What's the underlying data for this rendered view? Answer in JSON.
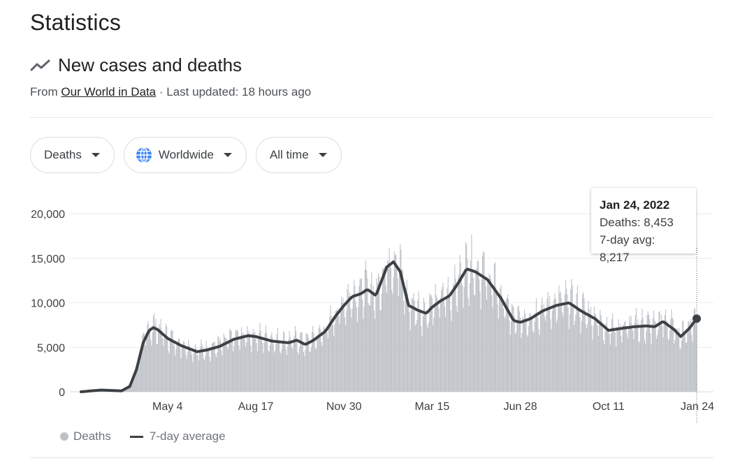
{
  "page": {
    "title": "Statistics",
    "section_title": "New cases and deaths",
    "source_prefix": "From",
    "source_link": "Our World in Data",
    "source_suffix": "· Last updated: 18 hours ago"
  },
  "filters": [
    {
      "label": "Deaths",
      "icon": "caret-down-icon"
    },
    {
      "label": "Worldwide",
      "icon": "globe-icon"
    },
    {
      "label": "All time",
      "icon": "caret-down-icon"
    }
  ],
  "tooltip": {
    "date": "Jan 24, 2022",
    "deaths": "Deaths: 8,453",
    "avg": "7-day avg: 8,217"
  },
  "legend": {
    "deaths": "Deaths",
    "avg": "7-day average"
  },
  "colors": {
    "bars": "#bdc1c6",
    "line": "#3c4043",
    "grid": "#ebebeb",
    "globe": "#4285f4"
  },
  "chart_data": {
    "type": "bar",
    "x_ticks": [
      "May 4",
      "Aug 17",
      "Nov 30",
      "Mar 15",
      "Jun 28",
      "Oct 11",
      "Jan 24"
    ],
    "y_ticks": [
      "20,000",
      "15,000",
      "10,000",
      "5,000",
      "0"
    ],
    "ylim": [
      0,
      20000
    ],
    "x_start": "2020-01-22",
    "x_end": "2022-01-24",
    "grid": true,
    "legend_position": "bottom-left",
    "series": [
      {
        "name": "7-day average",
        "type": "line",
        "x": [
          "2020-01-22",
          "2020-02-15",
          "2020-03-10",
          "2020-03-20",
          "2020-03-28",
          "2020-04-05",
          "2020-04-12",
          "2020-04-17",
          "2020-04-22",
          "2020-05-04",
          "2020-05-20",
          "2020-06-08",
          "2020-06-20",
          "2020-07-05",
          "2020-07-22",
          "2020-08-08",
          "2020-08-17",
          "2020-09-05",
          "2020-09-25",
          "2020-10-05",
          "2020-10-15",
          "2020-10-25",
          "2020-11-08",
          "2020-11-20",
          "2020-11-30",
          "2020-12-10",
          "2020-12-20",
          "2020-12-28",
          "2021-01-07",
          "2021-01-20",
          "2021-01-28",
          "2021-02-05",
          "2021-02-15",
          "2021-02-25",
          "2021-03-08",
          "2021-03-15",
          "2021-03-25",
          "2021-04-05",
          "2021-04-15",
          "2021-04-25",
          "2021-05-05",
          "2021-05-20",
          "2021-06-05",
          "2021-06-20",
          "2021-06-28",
          "2021-07-10",
          "2021-07-25",
          "2021-08-10",
          "2021-08-25",
          "2021-09-08",
          "2021-09-25",
          "2021-10-11",
          "2021-10-25",
          "2021-11-10",
          "2021-11-25",
          "2021-12-05",
          "2021-12-15",
          "2021-12-28",
          "2022-01-05",
          "2022-01-15",
          "2022-01-24"
        ],
        "y": [
          0,
          200,
          100,
          600,
          2500,
          5500,
          6900,
          7200,
          7000,
          6000,
          5200,
          4500,
          4700,
          5100,
          5900,
          6300,
          6200,
          5700,
          5500,
          5800,
          5300,
          5800,
          6800,
          8500,
          9700,
          10700,
          11000,
          11500,
          10800,
          14000,
          14600,
          13500,
          9700,
          9200,
          8800,
          9500,
          10200,
          10800,
          12200,
          13800,
          13500,
          12600,
          10500,
          8000,
          7800,
          8200,
          9100,
          9700,
          10000,
          9100,
          8200,
          6900,
          7100,
          7300,
          7400,
          7300,
          7900,
          7000,
          6200,
          7100,
          8217
        ]
      },
      {
        "name": "Deaths",
        "type": "bar",
        "highlight": {
          "x": "2022-01-24",
          "y": 8453
        }
      }
    ]
  }
}
